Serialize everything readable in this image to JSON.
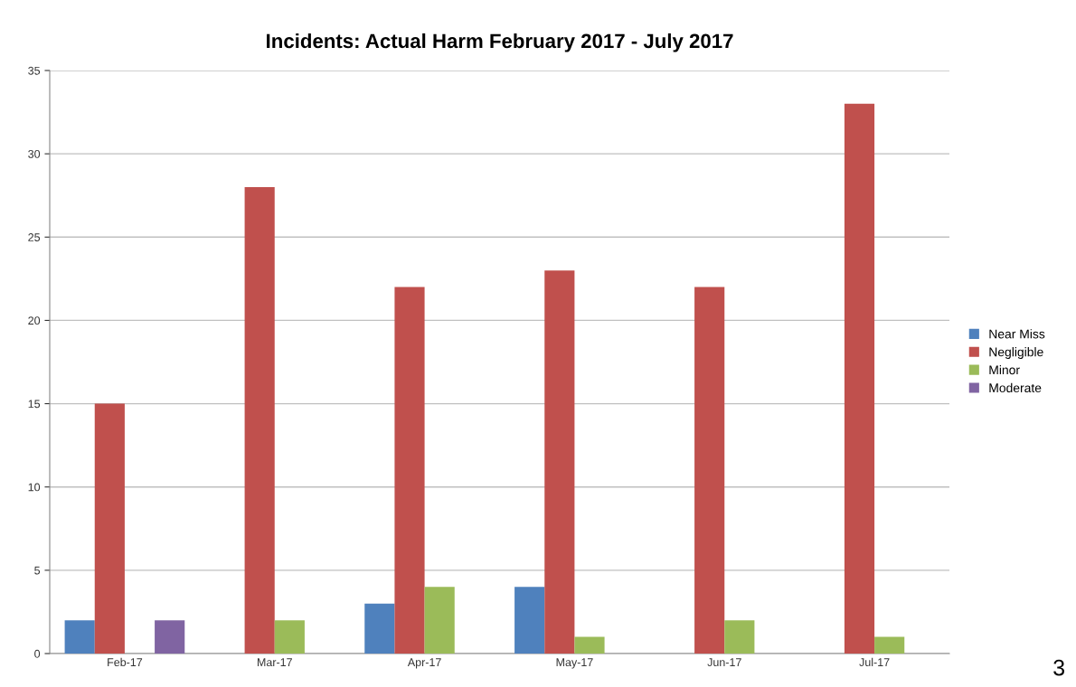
{
  "chart_data": {
    "type": "bar",
    "title": "Incidents: Actual Harm February 2017 - July 2017",
    "categories": [
      "Feb-17",
      "Mar-17",
      "Apr-17",
      "May-17",
      "Jun-17",
      "Jul-17"
    ],
    "series": [
      {
        "name": "Near Miss",
        "color": "#4f81bd",
        "values": [
          2,
          null,
          3,
          4,
          null,
          null
        ]
      },
      {
        "name": "Negligible",
        "color": "#c0504d",
        "values": [
          15,
          28,
          22,
          23,
          22,
          33
        ]
      },
      {
        "name": "Minor",
        "color": "#9bbb59",
        "values": [
          null,
          2,
          4,
          1,
          2,
          1
        ]
      },
      {
        "name": "Moderate",
        "color": "#8064a2",
        "values": [
          2,
          null,
          null,
          null,
          null,
          null
        ]
      }
    ],
    "ylim": [
      0,
      35
    ],
    "yticks": [
      0,
      5,
      10,
      15,
      20,
      25,
      30,
      35
    ],
    "grid": "y",
    "legend": "right",
    "annotations": [
      "3"
    ]
  }
}
